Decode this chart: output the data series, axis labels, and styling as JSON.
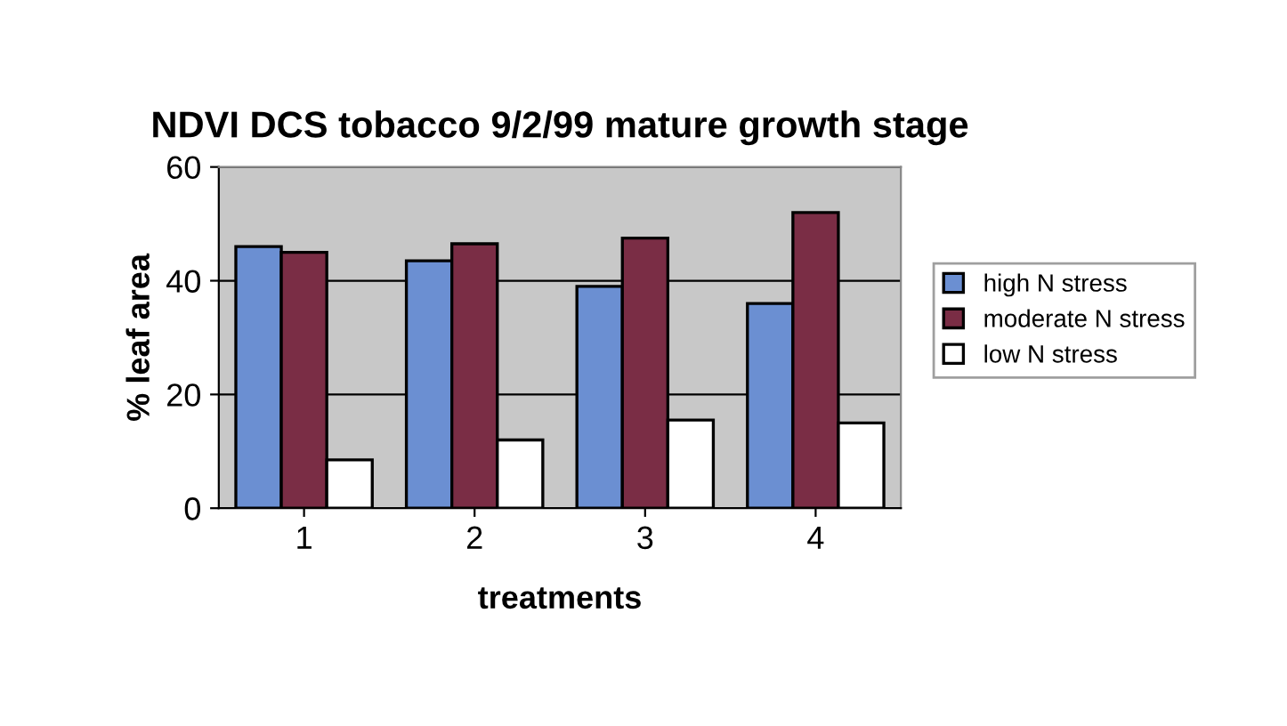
{
  "chart_data": {
    "type": "bar",
    "title": "NDVI DCS tobacco 9/2/99 mature growth stage",
    "xlabel": "treatments",
    "ylabel": "% leaf area",
    "categories": [
      "1",
      "2",
      "3",
      "4"
    ],
    "series": [
      {
        "name": "high N stress",
        "color": "#6b8fd2",
        "values": [
          46,
          43.5,
          39,
          36
        ]
      },
      {
        "name": "moderate N stress",
        "color": "#7a2d45",
        "values": [
          45,
          46.5,
          47.5,
          52
        ]
      },
      {
        "name": "low N stress",
        "color": "#ffffff",
        "values": [
          8.5,
          12,
          15.5,
          15
        ]
      }
    ],
    "ylim": [
      0,
      60
    ],
    "yticks": [
      0,
      20,
      40,
      60
    ],
    "grid": "y",
    "legend": "right"
  }
}
